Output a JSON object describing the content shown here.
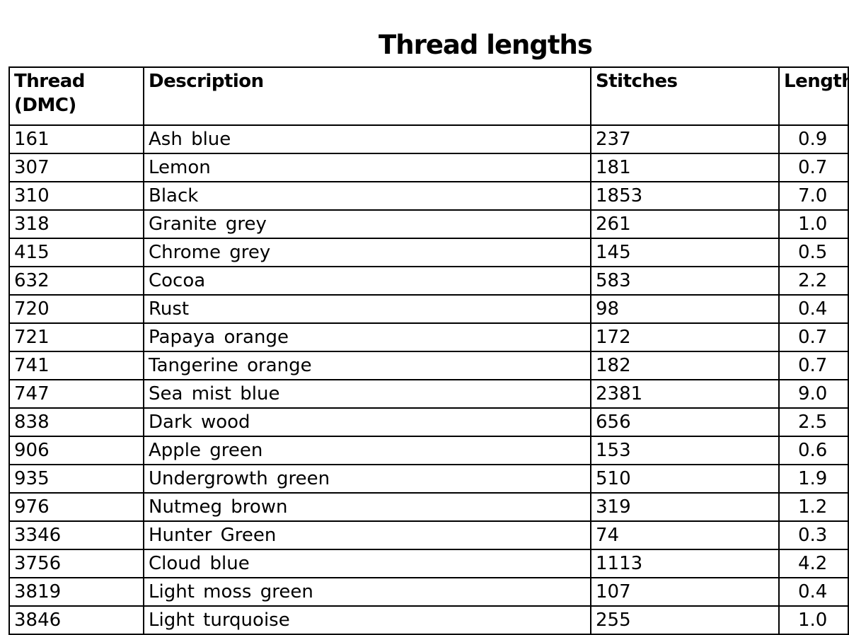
{
  "title": "Thread lengths",
  "headers": [
    "Thread (DMC)",
    "Description",
    "Stitches",
    "Length"
  ],
  "rows": [
    [
      "161",
      "Ash blue",
      "237",
      "0.9"
    ],
    [
      "307",
      "Lemon",
      "181",
      "0.7"
    ],
    [
      "310",
      "Black",
      "1853",
      "7.0"
    ],
    [
      "318",
      "Granite grey",
      "261",
      "1.0"
    ],
    [
      "415",
      "Chrome grey",
      "145",
      "0.5"
    ],
    [
      "632",
      "Cocoa",
      "583",
      "2.2"
    ],
    [
      "720",
      "Rust",
      "98",
      "0.4"
    ],
    [
      "721",
      "Papaya orange",
      "172",
      "0.7"
    ],
    [
      "741",
      "Tangerine orange",
      "182",
      "0.7"
    ],
    [
      "747",
      "Sea mist blue",
      "2381",
      "9.0"
    ],
    [
      "838",
      "Dark wood",
      "656",
      "2.5"
    ],
    [
      "906",
      "Apple green",
      "153",
      "0.6"
    ],
    [
      "935",
      "Undergrowth green",
      "510",
      "1.9"
    ],
    [
      "976",
      "Nutmeg brown",
      "319",
      "1.2"
    ],
    [
      "3346",
      "Hunter Green",
      "74",
      "0.3"
    ],
    [
      "3756",
      "Cloud blue",
      "1113",
      "4.2"
    ],
    [
      "3819",
      "Light moss green",
      "107",
      "0.4"
    ],
    [
      "3846",
      "Light turquoise",
      "255",
      "1.0"
    ]
  ]
}
